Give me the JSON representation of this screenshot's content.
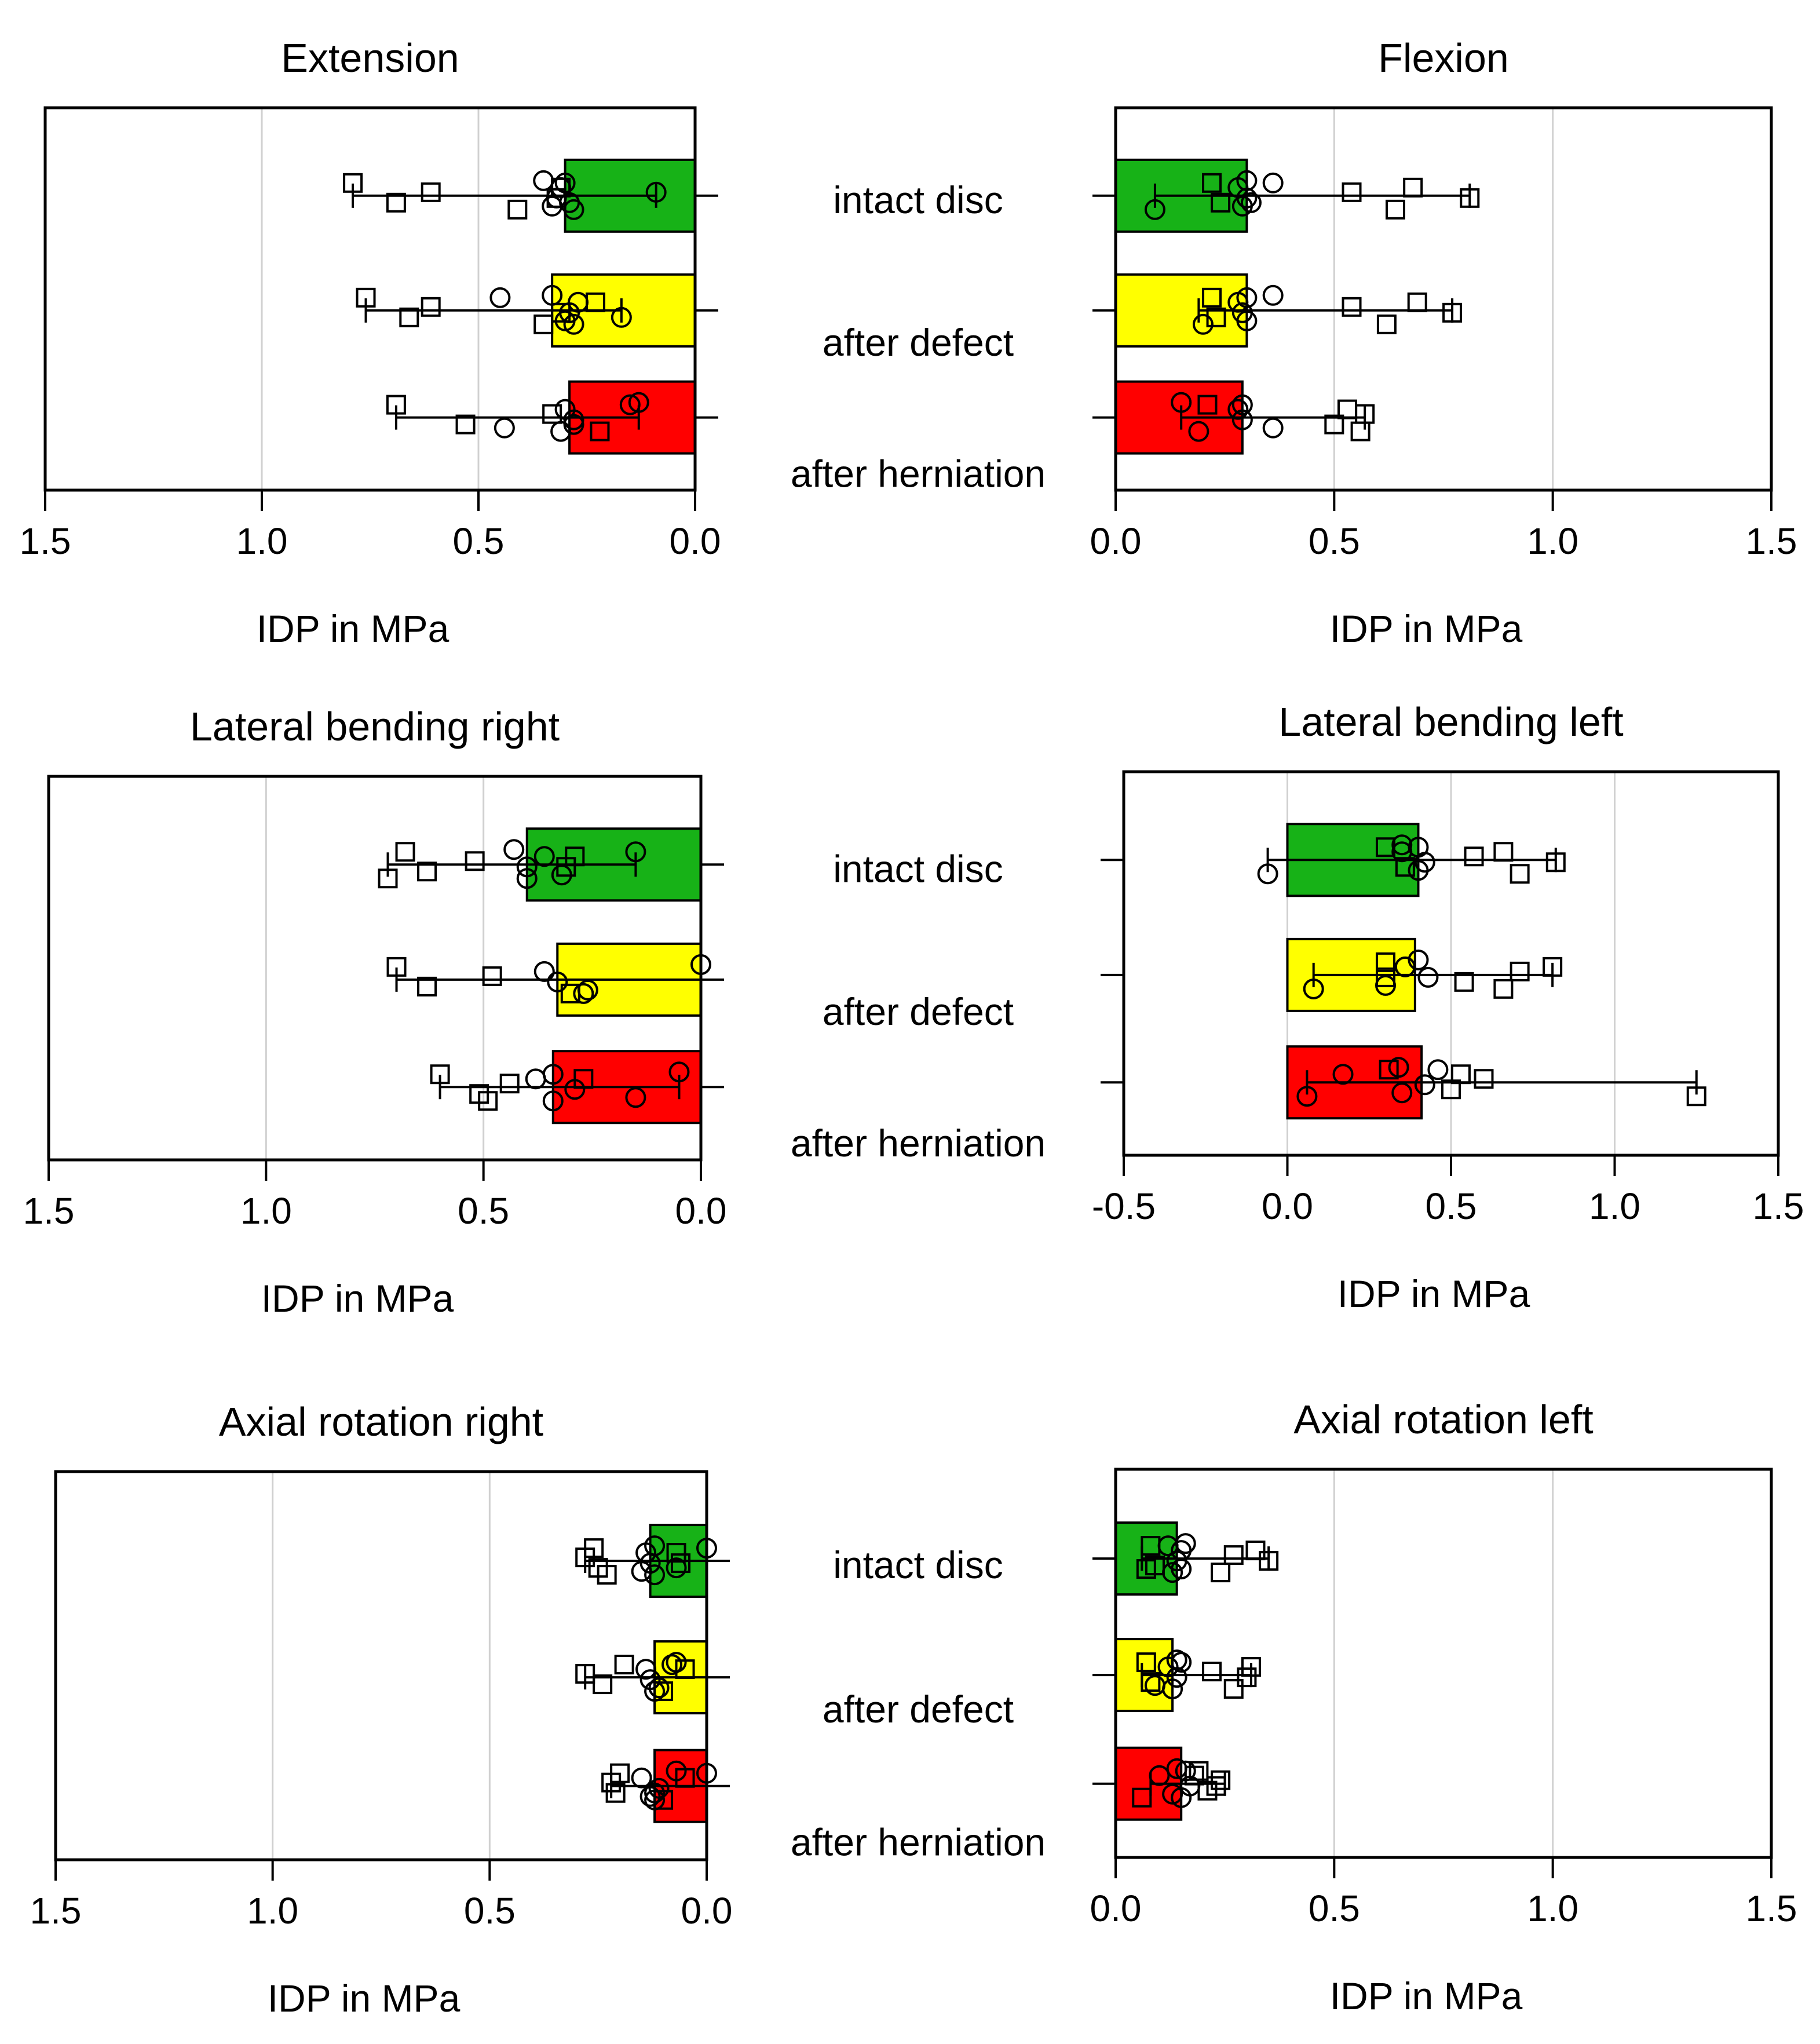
{
  "figure": {
    "category_labels": [
      "intact disc",
      "after defect",
      "after herniation"
    ],
    "colors": {
      "intact disc": "#17b217",
      "after defect": "#ffff00",
      "after herniation": "#ff0000"
    }
  },
  "chart_data": [
    {
      "type": "bar",
      "title": "Extension",
      "xlabel": "IDP in MPa",
      "orientation": "horizontal",
      "x_reversed": true,
      "xlim": [
        1.5,
        0.0
      ],
      "xticks": [
        "1.5",
        "1.0",
        "0.5",
        "0.0"
      ],
      "xtick_values": [
        1.5,
        1.0,
        0.5,
        0.0
      ],
      "grid": true,
      "categories": [
        "intact disc",
        "after defect",
        "after herniation"
      ],
      "values": [
        0.3,
        0.33,
        0.29
      ],
      "error_low": [
        0.09,
        0.17,
        0.13
      ],
      "error_high": [
        0.79,
        0.76,
        0.69
      ],
      "points_circle": [
        [
          0.28,
          0.31,
          0.32,
          0.33,
          0.35,
          0.3,
          0.29,
          0.09
        ],
        [
          0.28,
          0.27,
          0.29,
          0.3,
          0.33,
          0.45,
          0.17
        ],
        [
          0.31,
          0.3,
          0.28,
          0.44,
          0.13,
          0.15,
          0.28
        ]
      ],
      "points_square": [
        [
          0.79,
          0.69,
          0.61,
          0.41,
          0.31,
          0.32
        ],
        [
          0.76,
          0.66,
          0.61,
          0.35,
          0.23,
          0.31
        ],
        [
          0.69,
          0.53,
          0.33,
          0.22
        ]
      ]
    },
    {
      "type": "bar",
      "title": "Flexion",
      "xlabel": "IDP in MPa",
      "orientation": "horizontal",
      "x_reversed": false,
      "xlim": [
        0.0,
        1.5
      ],
      "xticks": [
        "0.0",
        "0.5",
        "1.0",
        "1.5"
      ],
      "xtick_values": [
        0.0,
        0.5,
        1.0,
        1.5
      ],
      "grid": true,
      "categories": [
        "intact disc",
        "after defect",
        "after herniation"
      ],
      "values": [
        0.3,
        0.3,
        0.29
      ],
      "error_low": [
        0.09,
        0.19,
        0.15
      ],
      "error_high": [
        0.81,
        0.77,
        0.57
      ],
      "points_circle": [
        [
          0.09,
          0.28,
          0.3,
          0.29,
          0.3,
          0.36,
          0.31
        ],
        [
          0.2,
          0.28,
          0.29,
          0.3,
          0.36,
          0.3
        ],
        [
          0.19,
          0.28,
          0.29,
          0.36,
          0.15,
          0.29
        ]
      ],
      "points_square": [
        [
          0.22,
          0.24,
          0.54,
          0.64,
          0.68,
          0.81
        ],
        [
          0.22,
          0.23,
          0.54,
          0.62,
          0.69,
          0.77
        ],
        [
          0.21,
          0.5,
          0.57,
          0.56,
          0.53
        ]
      ]
    },
    {
      "type": "bar",
      "title": "Lateral bending right",
      "xlabel": "IDP in MPa",
      "orientation": "horizontal",
      "x_reversed": true,
      "xlim": [
        1.5,
        0.0
      ],
      "xticks": [
        "1.5",
        "1.0",
        "0.5",
        "0.0"
      ],
      "xtick_values": [
        1.5,
        1.0,
        0.5,
        0.0
      ],
      "grid": true,
      "categories": [
        "intact disc",
        "after defect",
        "after herniation"
      ],
      "values": [
        0.4,
        0.33,
        0.34
      ],
      "error_low": [
        0.15,
        0.0,
        0.05
      ],
      "error_high": [
        0.72,
        0.7,
        0.6
      ],
      "points_circle": [
        [
          0.4,
          0.36,
          0.4,
          0.32,
          0.43,
          0.15
        ],
        [
          0.27,
          0.36,
          0.33,
          0.26,
          0.0
        ],
        [
          0.34,
          0.38,
          0.29,
          0.15,
          0.05,
          0.34
        ]
      ],
      "points_square": [
        [
          0.68,
          0.63,
          0.52,
          0.72,
          0.29,
          0.31
        ],
        [
          0.7,
          0.63,
          0.48,
          0.3
        ],
        [
          0.6,
          0.51,
          0.44,
          0.49,
          0.27
        ]
      ]
    },
    {
      "type": "bar",
      "title": "Lateral bending left",
      "xlabel": "IDP in MPa",
      "orientation": "horizontal",
      "x_reversed": false,
      "xlim": [
        -0.5,
        1.5
      ],
      "xticks": [
        "-0.5",
        "0.0",
        "0.5",
        "1.0",
        "1.5"
      ],
      "xtick_values": [
        -0.5,
        0.0,
        0.5,
        1.0,
        1.5
      ],
      "grid": true,
      "categories": [
        "intact disc",
        "after defect",
        "after herniation"
      ],
      "values": [
        0.4,
        0.39,
        0.41
      ],
      "error_low": [
        -0.06,
        0.08,
        0.06
      ],
      "error_high": [
        0.82,
        0.81,
        1.25
      ],
      "points_circle": [
        [
          -0.06,
          0.35,
          0.42,
          0.4,
          0.35,
          0.4
        ],
        [
          0.08,
          0.36,
          0.43,
          0.3,
          0.4
        ],
        [
          0.06,
          0.17,
          0.42,
          0.35,
          0.34,
          0.46
        ]
      ],
      "points_square": [
        [
          0.3,
          0.36,
          0.57,
          0.71,
          0.66,
          0.82
        ],
        [
          0.3,
          0.54,
          0.71,
          0.66,
          0.81,
          0.3
        ],
        [
          0.31,
          0.5,
          0.6,
          1.25,
          0.53
        ]
      ]
    },
    {
      "type": "bar",
      "title": "Axial rotation right",
      "xlabel": "IDP in MPa",
      "orientation": "horizontal",
      "x_reversed": true,
      "xlim": [
        1.5,
        0.0
      ],
      "xticks": [
        "1.5",
        "1.0",
        "0.5",
        "0.0"
      ],
      "xtick_values": [
        1.5,
        1.0,
        0.5,
        0.0
      ],
      "grid": true,
      "categories": [
        "intact disc",
        "after defect",
        "after herniation"
      ],
      "values": [
        0.13,
        0.12,
        0.12
      ],
      "error_low": [
        0.0,
        0.0,
        0.0
      ],
      "error_high": [
        0.28,
        0.28,
        0.22
      ],
      "points_circle": [
        [
          0.12,
          0.14,
          0.13,
          0.15,
          0.12,
          0.0,
          0.07
        ],
        [
          0.12,
          0.14,
          0.13,
          0.11,
          0.07,
          0.08
        ],
        [
          0.12,
          0.15,
          0.11,
          0.13,
          0.07,
          0.0,
          0.12
        ]
      ],
      "points_square": [
        [
          0.26,
          0.25,
          0.28,
          0.23,
          0.07,
          0.06
        ],
        [
          0.19,
          0.24,
          0.28,
          0.1,
          0.05
        ],
        [
          0.2,
          0.21,
          0.22,
          0.1,
          0.05
        ]
      ]
    },
    {
      "type": "bar",
      "title": "Axial rotation left",
      "xlabel": "IDP in MPa",
      "orientation": "horizontal",
      "x_reversed": false,
      "xlim": [
        0.0,
        1.5
      ],
      "xticks": [
        "0.0",
        "0.5",
        "1.0",
        "1.5"
      ],
      "xtick_values": [
        0.0,
        0.5,
        1.0,
        1.5
      ],
      "grid": true,
      "categories": [
        "intact disc",
        "after defect",
        "after herniation"
      ],
      "values": [
        0.14,
        0.13,
        0.15
      ],
      "error_low": [
        0.06,
        0.06,
        0.08
      ],
      "error_high": [
        0.35,
        0.31,
        0.25
      ],
      "points_circle": [
        [
          0.13,
          0.15,
          0.14,
          0.15,
          0.16,
          0.12
        ],
        [
          0.13,
          0.12,
          0.14,
          0.09,
          0.14,
          0.15
        ],
        [
          0.15,
          0.1,
          0.17,
          0.13,
          0.14,
          0.16
        ]
      ],
      "points_square": [
        [
          0.08,
          0.09,
          0.27,
          0.24,
          0.32,
          0.35,
          0.07
        ],
        [
          0.07,
          0.08,
          0.22,
          0.27,
          0.31,
          0.3
        ],
        [
          0.19,
          0.21,
          0.24,
          0.06,
          0.18,
          0.23
        ]
      ]
    }
  ]
}
